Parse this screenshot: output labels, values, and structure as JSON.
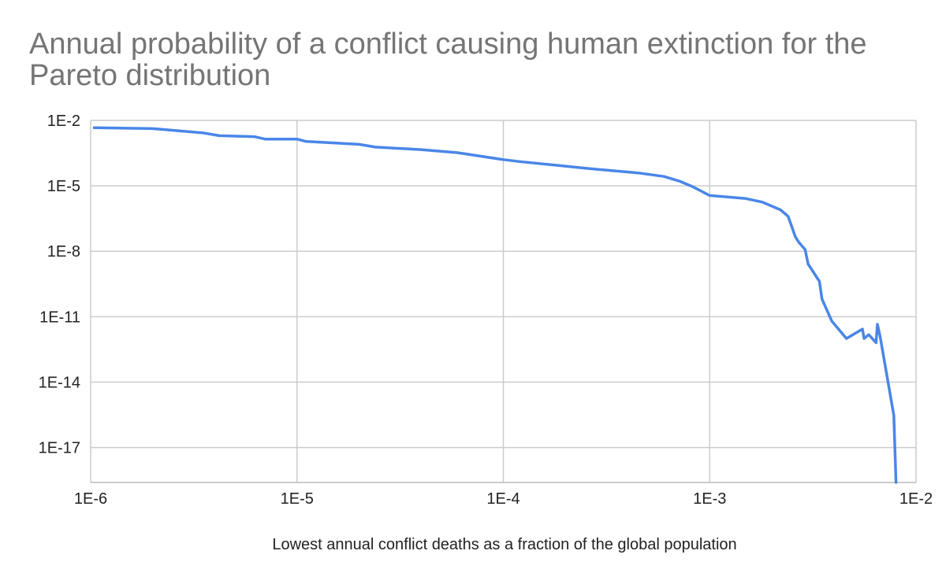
{
  "chart_data": {
    "type": "line",
    "title": "Annual probability of a conflict causing human extinction for the Pareto distribution",
    "xlabel": "Lowest annual conflict deaths as a fraction of the global population",
    "ylabel": "",
    "x_scale": "log",
    "y_scale": "log",
    "xlim": [
      1e-06,
      0.01
    ],
    "ylim": [
      2.5e-19,
      0.01
    ],
    "x_ticks": [
      {
        "value": 1e-06,
        "label": "1E-6"
      },
      {
        "value": 1e-05,
        "label": "1E-5"
      },
      {
        "value": 0.0001,
        "label": "1E-4"
      },
      {
        "value": 0.001,
        "label": "1E-3"
      },
      {
        "value": 0.01,
        "label": "1E-2"
      }
    ],
    "y_ticks": [
      {
        "value": 0.01,
        "label": "1E-2"
      },
      {
        "value": 1e-05,
        "label": "1E-5"
      },
      {
        "value": 1e-08,
        "label": "1E-8"
      },
      {
        "value": 1e-11,
        "label": "1E-11"
      },
      {
        "value": 1e-14,
        "label": "1E-14"
      },
      {
        "value": 1e-17,
        "label": "1E-17"
      }
    ],
    "grid": true,
    "legend": "none",
    "series": [
      {
        "color": "#4A86E8",
        "x": [
          1.04e-06,
          2e-06,
          3.5e-06,
          4.2e-06,
          6.2e-06,
          7e-06,
          1e-05,
          1.1e-05,
          2e-05,
          2.4e-05,
          4e-05,
          6e-05,
          0.0001,
          0.00012,
          0.0002,
          0.00025,
          0.00045,
          0.0006,
          0.00072,
          0.00083,
          0.001,
          0.0015,
          0.0018,
          0.0022,
          0.0024,
          0.0026,
          0.0027,
          0.0029,
          0.003,
          0.0034,
          0.0035,
          0.0039,
          0.0046,
          0.0055,
          0.0056,
          0.0059,
          0.0064,
          0.0065,
          0.0067,
          0.0078,
          0.008
        ],
        "y": [
          0.0046,
          0.0042,
          0.0027,
          0.002,
          0.0018,
          0.0014,
          0.0014,
          0.0011,
          0.0008,
          0.0006,
          0.00046,
          0.00033,
          0.00016,
          0.00013,
          8e-05,
          6.4e-05,
          3.9e-05,
          2.7e-05,
          1.6e-05,
          9e-06,
          3.6e-06,
          2.6e-06,
          1.8e-06,
          8e-07,
          4e-07,
          4.6e-08,
          2.6e-08,
          1.2e-08,
          2.6e-09,
          4.2e-10,
          6.4e-11,
          6.4e-12,
          1e-12,
          2.7e-12,
          1e-12,
          1.5e-12,
          6.4e-13,
          4.5e-12,
          1.2e-12,
          3e-16,
          2.5e-19
        ]
      }
    ]
  }
}
